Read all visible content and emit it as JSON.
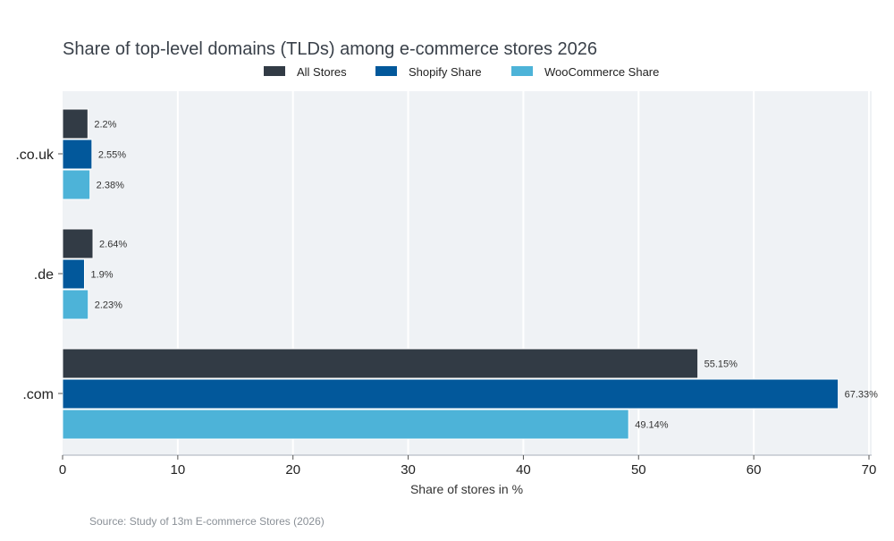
{
  "chart_data": {
    "type": "bar",
    "orientation": "horizontal",
    "title": "Share of top-level domains (TLDs) among e-commerce stores 2026",
    "xlabel": "Share of stores in %",
    "ylabel": "",
    "xlim": [
      0,
      70
    ],
    "xticks": [
      0,
      10,
      20,
      30,
      40,
      50,
      60,
      70
    ],
    "grid": true,
    "legend_position": "top",
    "categories": [
      ".co.uk",
      ".de",
      ".com"
    ],
    "series": [
      {
        "name": "All Stores",
        "color": "#323b45",
        "values": [
          2.2,
          2.64,
          55.15
        ],
        "labels": [
          "2.2%",
          "2.64%",
          "55.15%"
        ]
      },
      {
        "name": "Shopify Share",
        "color": "#02589b",
        "values": [
          2.55,
          1.9,
          67.33
        ],
        "labels": [
          "2.55%",
          "1.9%",
          "67.33%"
        ]
      },
      {
        "name": "WooCommerce Share",
        "color": "#4db3d8",
        "values": [
          2.38,
          2.23,
          49.14
        ],
        "labels": [
          "2.38%",
          "2.23%",
          "49.14%"
        ]
      }
    ],
    "source": "Source: Study of 13m E-commerce Stores (2026)"
  }
}
